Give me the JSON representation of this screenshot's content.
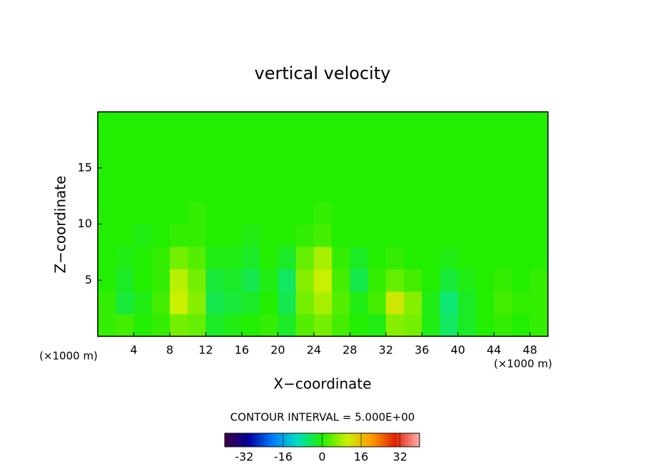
{
  "chart_data": {
    "type": "contour",
    "title": "vertical velocity",
    "xlabel": "X−coordinate",
    "ylabel": "Z−coordinate",
    "x_unit_label": "(×1000 m)",
    "contour_label": "CONTOUR INTERVAL = 5.000E+00",
    "xlim": [
      0,
      50
    ],
    "ylim": [
      0,
      20
    ],
    "xticks": [
      4,
      8,
      12,
      16,
      20,
      24,
      28,
      32,
      36,
      40,
      44,
      48
    ],
    "yticks": [
      5,
      10,
      15
    ],
    "x": [
      1,
      3,
      5,
      7,
      9,
      11,
      13,
      15,
      17,
      19,
      21,
      23,
      25,
      27,
      29,
      31,
      33,
      35,
      37,
      39,
      41,
      43,
      45,
      47,
      49
    ],
    "y": [
      1,
      3,
      5,
      7,
      9,
      11,
      13,
      15,
      17,
      19
    ],
    "z": [
      [
        1,
        2,
        0,
        1,
        5,
        4,
        -2,
        -1,
        0,
        1,
        -2,
        3,
        5,
        2,
        0,
        -1,
        6,
        5,
        -1,
        -5,
        -2,
        0,
        1,
        0,
        1
      ],
      [
        1,
        -3,
        -1,
        2,
        10,
        6,
        -4,
        -3,
        -2,
        0,
        -4,
        5,
        8,
        3,
        -1,
        2,
        11,
        6,
        -1,
        -6,
        -2,
        0,
        2,
        1,
        1
      ],
      [
        0,
        -2,
        0,
        1,
        9,
        5,
        -3,
        -2,
        -4,
        -1,
        -5,
        6,
        10,
        2,
        -4,
        1,
        4,
        2,
        0,
        -3,
        -1,
        0,
        1,
        0,
        1
      ],
      [
        0,
        -1,
        0,
        1,
        5,
        3,
        -1,
        -1,
        -2,
        0,
        -2,
        4,
        8,
        1,
        -2,
        0,
        1,
        0,
        0,
        -1,
        0,
        0,
        0,
        0,
        0
      ],
      [
        0,
        0,
        -1,
        0,
        1,
        1,
        0,
        0,
        -1,
        0,
        0,
        1,
        2,
        0,
        0,
        0,
        0,
        0,
        0,
        0,
        0,
        0,
        0,
        0,
        0
      ],
      [
        0,
        0,
        0,
        0,
        0,
        1,
        0,
        0,
        0,
        0,
        0,
        0,
        1,
        0,
        0,
        0,
        0,
        0,
        0,
        0,
        0,
        0,
        0,
        0,
        0
      ],
      [
        0,
        0,
        0,
        0,
        0,
        0,
        0,
        0,
        0,
        0,
        0,
        0,
        0,
        0,
        0,
        0,
        0,
        0,
        0,
        0,
        0,
        0,
        0,
        0,
        0
      ],
      [
        0,
        0,
        0,
        0,
        0,
        0,
        0,
        0,
        0,
        0,
        0,
        0,
        0,
        0,
        0,
        0,
        0,
        0,
        0,
        0,
        0,
        0,
        0,
        0,
        0
      ],
      [
        0,
        0,
        0,
        0,
        0,
        0,
        0,
        0,
        0,
        0,
        0,
        0,
        0,
        0,
        0,
        0,
        0,
        0,
        0,
        0,
        0,
        0,
        0,
        0,
        0
      ],
      [
        0,
        0,
        0,
        0,
        0,
        0,
        0,
        0,
        0,
        0,
        0,
        0,
        0,
        0,
        0,
        0,
        0,
        0,
        0,
        0,
        0,
        0,
        0,
        0,
        0
      ]
    ],
    "clim": [
      -40,
      40
    ],
    "cticks": [
      -32,
      -16,
      0,
      16,
      32
    ],
    "colormap": [
      "#400040",
      "#0000a0",
      "#0080ff",
      "#00e0c0",
      "#22ee00",
      "#c8f000",
      "#ffa000",
      "#e02000",
      "#ffb0b0"
    ]
  }
}
